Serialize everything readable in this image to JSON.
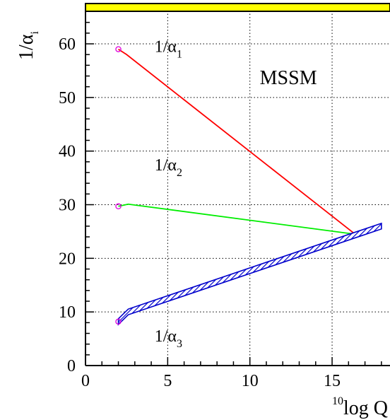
{
  "chart_data": {
    "type": "line",
    "title": "",
    "xlabel": {
      "super": "10",
      "main": "log Q"
    },
    "ylabel": {
      "main": "1/α",
      "sub": "i"
    },
    "xlim": [
      0,
      18.5
    ],
    "ylim": [
      0,
      65
    ],
    "xticks": [
      "0",
      "5",
      "10",
      "15"
    ],
    "yticks": [
      "0",
      "10",
      "20",
      "30",
      "40",
      "50",
      "60"
    ],
    "xtick_values": [
      0,
      5,
      10,
      15
    ],
    "ytick_values": [
      0,
      10,
      20,
      30,
      40,
      50,
      60
    ],
    "grid": true,
    "annotations": [
      {
        "main": "1/α",
        "sub": "1",
        "x": 4.2,
        "y": 58.5
      },
      {
        "main": "1/α",
        "sub": "2",
        "x": 4.2,
        "y": 36.4
      },
      {
        "main": "1/α",
        "sub": "3",
        "x": 4.2,
        "y": 4.5
      },
      {
        "main": "MSSM",
        "sub": "",
        "x": 10.6,
        "y": 52.5
      }
    ],
    "series": [
      {
        "name": "",
        "color": "#ff0000",
        "x": [
          2.0,
          2.5,
          16.4
        ],
        "y": [
          59.0,
          58.0,
          24.5
        ]
      },
      {
        "name": "",
        "color": "#00ee00",
        "x": [
          2.0,
          2.6,
          16.4
        ],
        "y": [
          29.7,
          30.1,
          24.5
        ]
      },
      {
        "name": "",
        "color": "#0000cc",
        "band": true,
        "x": [
          2.0,
          2.6,
          18.0
        ],
        "y": [
          8.2,
          10.0,
          26.0
        ]
      }
    ],
    "markers": [
      {
        "x": 2.0,
        "y": 59.0
      },
      {
        "x": 2.0,
        "y": 29.7
      },
      {
        "x": 2.0,
        "y": 8.2
      }
    ],
    "colors": {
      "top_bar": "#ffff00",
      "marker": "#dd00dd"
    }
  }
}
